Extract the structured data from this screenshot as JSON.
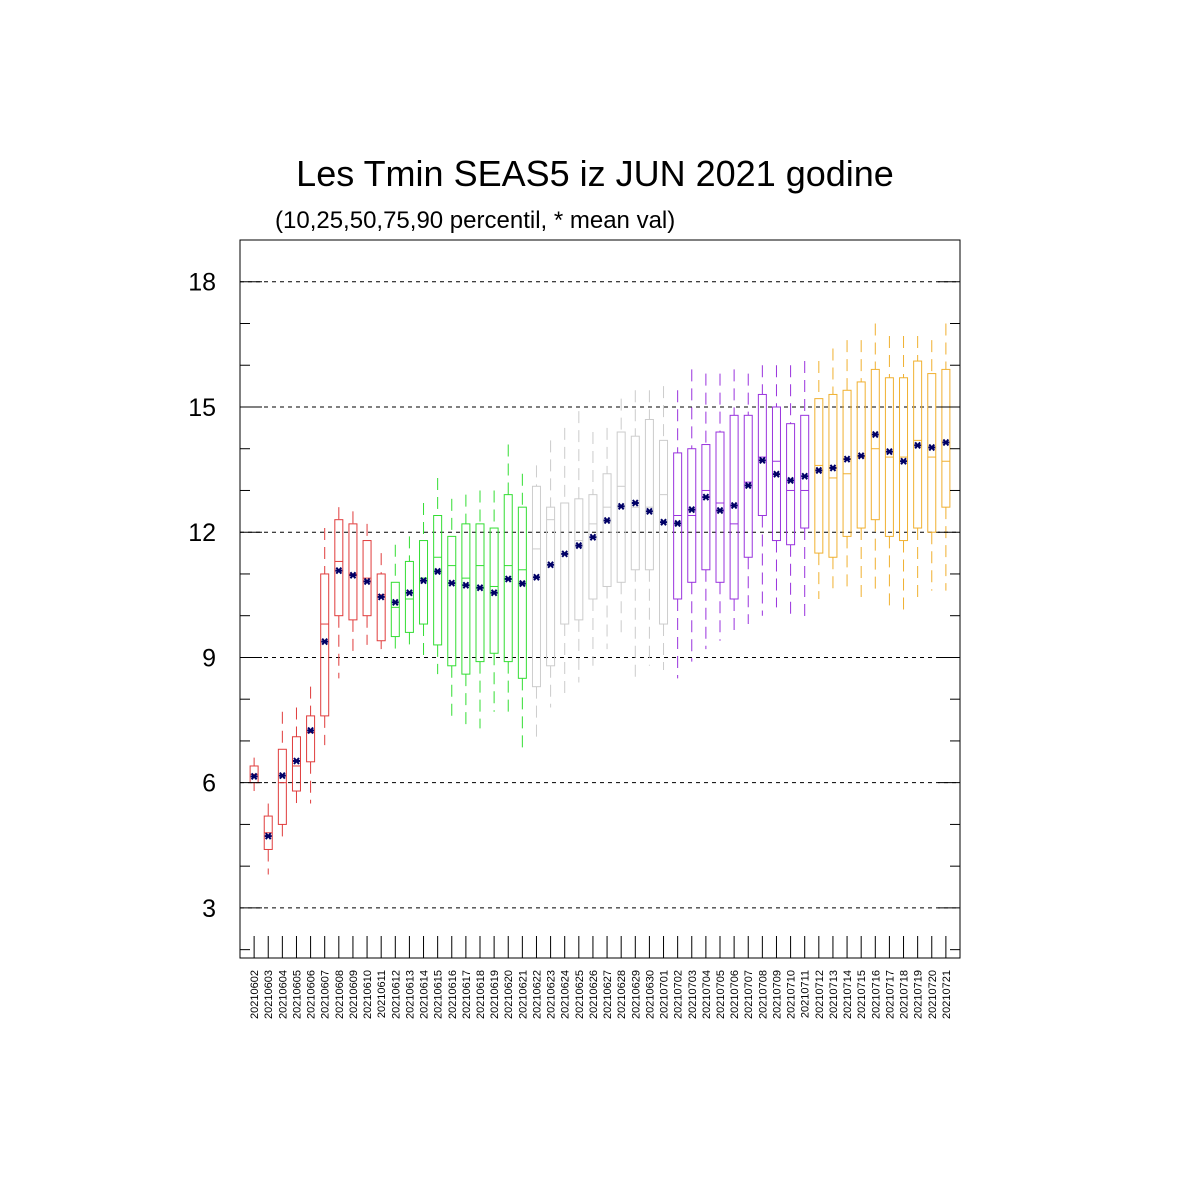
{
  "chart_data": {
    "type": "box",
    "title": "Les Tmin SEAS5 iz JUN 2021 godine",
    "subtitle": "(10,25,50,75,90 percentil, * mean val)",
    "ylim": [
      1.8,
      19.0
    ],
    "yticks": [
      3,
      6,
      9,
      12,
      15,
      18
    ],
    "grid": "horizontal dashed at major ticks",
    "colors": {
      "june_early": "#e03c3c",
      "june_mid": "#33dd33",
      "june_late": "#cccccc",
      "july_early": "#9933dd",
      "july_mid": "#f0b030",
      "mean_marker": "#000066"
    },
    "categories": [
      "20210602",
      "20210603",
      "20210604",
      "20210605",
      "20210606",
      "20210607",
      "20210608",
      "20210609",
      "20210610",
      "20210611",
      "20210612",
      "20210613",
      "20210614",
      "20210615",
      "20210616",
      "20210617",
      "20210618",
      "20210619",
      "20210620",
      "20210621",
      "20210622",
      "20210623",
      "20210624",
      "20210625",
      "20210626",
      "20210627",
      "20210628",
      "20210629",
      "20210630",
      "20210701",
      "20210702",
      "20210703",
      "20210704",
      "20210705",
      "20210706",
      "20210707",
      "20210708",
      "20210709",
      "20210710",
      "20210711",
      "20210712",
      "20210713",
      "20210714",
      "20210715",
      "20210716",
      "20210717",
      "20210718",
      "20210719",
      "20210720",
      "20210721"
    ],
    "color_group": [
      "june_early",
      "june_early",
      "june_early",
      "june_early",
      "june_early",
      "june_early",
      "june_early",
      "june_early",
      "june_early",
      "june_early",
      "june_mid",
      "june_mid",
      "june_mid",
      "june_mid",
      "june_mid",
      "june_mid",
      "june_mid",
      "june_mid",
      "june_mid",
      "june_mid",
      "june_late",
      "june_late",
      "june_late",
      "june_late",
      "june_late",
      "june_late",
      "june_late",
      "june_late",
      "june_late",
      "june_late",
      "july_early",
      "july_early",
      "july_early",
      "july_early",
      "july_early",
      "july_early",
      "july_early",
      "july_early",
      "july_early",
      "july_early",
      "july_mid",
      "july_mid",
      "july_mid",
      "july_mid",
      "july_mid",
      "july_mid",
      "july_mid",
      "july_mid",
      "july_mid",
      "july_mid"
    ],
    "p10": [
      5.8,
      3.8,
      4.6,
      5.5,
      5.5,
      6.9,
      8.5,
      9.1,
      9.3,
      9.2,
      9.2,
      9.2,
      8.9,
      8.6,
      7.6,
      7.4,
      7.3,
      7.7,
      7.6,
      6.8,
      7.0,
      7.8,
      8.1,
      8.4,
      8.8,
      9.2,
      9.5,
      8.5,
      8.8,
      8.7,
      8.5,
      8.9,
      9.2,
      9.4,
      9.5,
      9.8,
      10.0,
      10.2,
      10.0,
      9.9,
      10.4,
      10.5,
      10.6,
      10.4,
      10.5,
      10.1,
      10.0,
      10.3,
      10.6,
      10.6
    ],
    "p25": [
      6.0,
      4.4,
      5.0,
      5.8,
      6.5,
      7.6,
      10.0,
      9.9,
      10.0,
      9.4,
      9.5,
      9.6,
      9.8,
      9.3,
      8.8,
      8.6,
      8.9,
      9.1,
      8.9,
      8.5,
      8.3,
      8.8,
      9.8,
      9.9,
      10.4,
      10.7,
      10.8,
      11.1,
      11.1,
      9.8,
      10.4,
      10.8,
      11.1,
      10.8,
      10.4,
      11.4,
      12.4,
      11.8,
      11.7,
      12.1,
      11.5,
      11.4,
      11.9,
      12.1,
      12.3,
      11.9,
      11.8,
      12.1,
      12.0,
      12.6
    ],
    "p50": [
      6.2,
      4.8,
      6.0,
      6.4,
      7.2,
      9.8,
      11.3,
      11.0,
      10.9,
      10.5,
      10.2,
      10.4,
      10.9,
      11.4,
      11.2,
      10.9,
      11.2,
      10.7,
      11.2,
      11.1,
      11.6,
      12.3,
      11.5,
      11.8,
      12.2,
      12.6,
      13.1,
      12.6,
      12.6,
      12.9,
      12.4,
      12.4,
      13.0,
      12.7,
      12.2,
      13.2,
      13.8,
      13.7,
      13.0,
      13.0,
      13.6,
      13.3,
      13.4,
      13.8,
      14.0,
      13.8,
      13.8,
      14.2,
      13.8,
      13.7
    ],
    "p75": [
      6.4,
      5.2,
      6.8,
      7.1,
      7.6,
      11.0,
      12.3,
      12.2,
      11.8,
      11.0,
      10.8,
      11.3,
      11.8,
      12.4,
      11.9,
      12.2,
      12.2,
      12.1,
      12.9,
      12.6,
      13.1,
      12.6,
      12.7,
      12.8,
      12.9,
      13.4,
      14.4,
      14.3,
      14.7,
      14.2,
      13.9,
      14.0,
      14.1,
      14.4,
      14.8,
      14.8,
      15.3,
      15.0,
      14.6,
      14.8,
      15.2,
      15.3,
      15.4,
      15.6,
      15.9,
      15.7,
      15.7,
      16.1,
      15.8,
      15.9
    ],
    "p90": [
      6.6,
      5.5,
      7.7,
      7.8,
      8.3,
      12.1,
      12.6,
      12.5,
      12.2,
      11.5,
      11.7,
      11.9,
      12.7,
      13.3,
      12.8,
      12.9,
      13.0,
      13.0,
      14.1,
      13.4,
      13.6,
      14.2,
      14.5,
      14.9,
      14.4,
      14.5,
      15.2,
      15.4,
      15.4,
      15.5,
      15.4,
      15.9,
      15.8,
      15.8,
      15.9,
      15.8,
      16.0,
      16.0,
      16.0,
      16.1,
      16.1,
      16.4,
      16.6,
      16.6,
      17.0,
      16.7,
      16.7,
      16.7,
      16.6,
      17.0
    ],
    "mean": [
      6.15,
      4.72,
      6.17,
      6.52,
      7.25,
      9.38,
      11.08,
      10.97,
      10.82,
      10.45,
      10.32,
      10.55,
      10.84,
      11.06,
      10.78,
      10.73,
      10.67,
      10.55,
      10.88,
      10.77,
      10.92,
      11.22,
      11.48,
      11.68,
      11.88,
      12.28,
      12.62,
      12.7,
      12.5,
      12.24,
      12.21,
      12.54,
      12.84,
      12.52,
      12.64,
      13.12,
      13.72,
      13.39,
      13.24,
      13.34,
      13.48,
      13.54,
      13.75,
      13.83,
      14.34,
      13.93,
      13.7,
      14.08,
      14.03,
      14.15
    ]
  }
}
